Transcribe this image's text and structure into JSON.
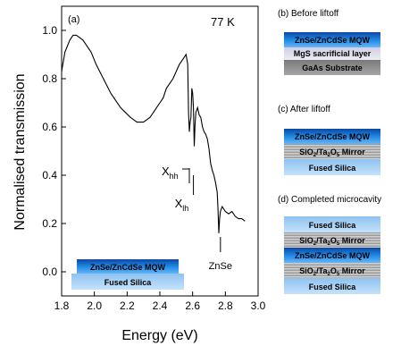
{
  "chart_data": {
    "type": "line",
    "panel_label": "(a)",
    "annotation_temperature": "77 K",
    "xlabel": "Energy (eV)",
    "ylabel": "Normalised transmission",
    "xlim": [
      1.8,
      3.0
    ],
    "ylim": [
      -0.1,
      1.1
    ],
    "xticks": [
      "1.8",
      "2.0",
      "2.2",
      "2.4",
      "2.6",
      "2.8",
      "3.0"
    ],
    "yticks": [
      "0.0",
      "0.2",
      "0.4",
      "0.6",
      "0.8",
      "1.0"
    ],
    "grid": false,
    "series": [
      {
        "color": "#000000",
        "x": [
          1.8,
          1.82,
          1.85,
          1.87,
          1.89,
          1.91,
          1.93,
          1.95,
          1.98,
          2.01,
          2.04,
          2.07,
          2.1,
          2.13,
          2.16,
          2.19,
          2.22,
          2.24,
          2.26,
          2.28,
          2.3,
          2.32,
          2.34,
          2.36,
          2.38,
          2.4,
          2.42,
          2.44,
          2.46,
          2.48,
          2.5,
          2.52,
          2.54,
          2.55,
          2.56,
          2.57,
          2.575,
          2.58,
          2.585,
          2.59,
          2.595,
          2.6,
          2.605,
          2.61,
          2.615,
          2.62,
          2.63,
          2.64,
          2.65,
          2.66,
          2.67,
          2.68,
          2.69,
          2.7,
          2.71,
          2.72,
          2.73,
          2.74,
          2.75,
          2.755,
          2.76,
          2.765,
          2.77,
          2.78,
          2.8,
          2.82,
          2.84,
          2.86,
          2.88,
          2.9,
          2.92
        ],
        "y": [
          0.83,
          0.91,
          0.96,
          0.98,
          0.98,
          0.97,
          0.96,
          0.94,
          0.91,
          0.86,
          0.82,
          0.78,
          0.74,
          0.71,
          0.68,
          0.66,
          0.64,
          0.63,
          0.62,
          0.62,
          0.62,
          0.63,
          0.64,
          0.66,
          0.68,
          0.7,
          0.72,
          0.76,
          0.78,
          0.8,
          0.83,
          0.86,
          0.88,
          0.89,
          0.9,
          0.86,
          0.66,
          0.58,
          0.62,
          0.64,
          0.76,
          0.74,
          0.68,
          0.52,
          0.61,
          0.66,
          0.68,
          0.65,
          0.64,
          0.6,
          0.58,
          0.57,
          0.55,
          0.51,
          0.45,
          0.42,
          0.4,
          0.37,
          0.33,
          0.26,
          0.16,
          0.22,
          0.25,
          0.27,
          0.25,
          0.24,
          0.25,
          0.23,
          0.22,
          0.22,
          0.21
        ]
      }
    ],
    "markers": {
      "xhh": {
        "label": "X",
        "sub": "hh",
        "x": 2.58
      },
      "xlh": {
        "label": "X",
        "sub": "lh",
        "x": 2.605
      },
      "znse": {
        "label": "ZnSe",
        "x": 2.77
      }
    },
    "inset": {
      "top_layer": "ZnSe/ZnCdSe MQW",
      "bottom_layer": "Fused Silica"
    }
  },
  "colors": {
    "mqw": "#1e88e5",
    "silica": "#a9d0f5",
    "mgs": "#dcdcec",
    "gaas": "#8c8c8c",
    "mirror": "#b5b5b5"
  },
  "panels": {
    "b": {
      "title": "(b) Before liftoff",
      "layers": [
        "ZnSe/ZnCdSe MQW",
        "MgS sacrificial layer",
        "GaAs Substrate"
      ]
    },
    "c": {
      "title": "(c) After liftoff",
      "layers": [
        "ZnSe/ZnCdSe MQW",
        "SiO2/Ta2O5 Mirror",
        "Fused Silica"
      ]
    },
    "d": {
      "title": "(d) Completed microcavity",
      "layers": [
        "Fused Silica",
        "SiO2/Ta2O5 Mirror",
        "ZnSe/ZnCdSe MQW",
        "SiO2/Ta2O5 Mirror",
        "Fused Silica"
      ]
    },
    "mirror_parts": {
      "sio": "SiO",
      "sub2": "2",
      "slash_ta": "/Ta",
      "sub2b": "2",
      "o": "O",
      "sub5": "5",
      "rest": " Mirror"
    }
  }
}
